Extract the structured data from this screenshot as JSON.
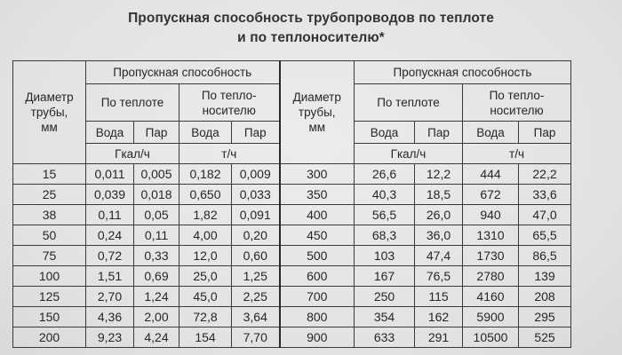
{
  "title_line1": "Пропускная способность трубопроводов по теплоте",
  "title_line2": "и по теплоносителю*",
  "headers": {
    "diameter_l1": "Диаметр",
    "diameter_l2": "трубы,",
    "diameter_l3": "мм",
    "capacity": "Пропускная способность",
    "by_heat": "По теплоте",
    "by_carrier_l1": "По тепло-",
    "by_carrier_l2": "носителю",
    "water": "Вода",
    "steam": "Пар",
    "unit_heat": "Гкал/ч",
    "unit_flow": "т/ч"
  },
  "left_rows": [
    {
      "d": "15",
      "hw": "0,011",
      "hs": "0,005",
      "cw": "0,182",
      "cs": "0,009"
    },
    {
      "d": "25",
      "hw": "0,039",
      "hs": "0,018",
      "cw": "0,650",
      "cs": "0,033"
    },
    {
      "d": "38",
      "hw": "0,11",
      "hs": "0,05",
      "cw": "1,82",
      "cs": "0,091"
    },
    {
      "d": "50",
      "hw": "0,24",
      "hs": "0,11",
      "cw": "4,00",
      "cs": "0,20"
    },
    {
      "d": "75",
      "hw": "0,72",
      "hs": "0,33",
      "cw": "12,0",
      "cs": "0,60"
    },
    {
      "d": "100",
      "hw": "1,51",
      "hs": "0,69",
      "cw": "25,0",
      "cs": "1,25"
    },
    {
      "d": "125",
      "hw": "2,70",
      "hs": "1,24",
      "cw": "45,0",
      "cs": "2,25"
    },
    {
      "d": "150",
      "hw": "4,36",
      "hs": "2,00",
      "cw": "72,8",
      "cs": "3,64"
    },
    {
      "d": "200",
      "hw": "9,23",
      "hs": "4,24",
      "cw": "154",
      "cs": "7,70"
    }
  ],
  "right_rows": [
    {
      "d": "300",
      "hw": "26,6",
      "hs": "12,2",
      "cw": "444",
      "cs": "22,2"
    },
    {
      "d": "350",
      "hw": "40,3",
      "hs": "18,5",
      "cw": "672",
      "cs": "33,6"
    },
    {
      "d": "400",
      "hw": "56,5",
      "hs": "26,0",
      "cw": "940",
      "cs": "47,0"
    },
    {
      "d": "450",
      "hw": "68,3",
      "hs": "36,0",
      "cw": "1310",
      "cs": "65,5"
    },
    {
      "d": "500",
      "hw": "103",
      "hs": "47,4",
      "cw": "1730",
      "cs": "86,5"
    },
    {
      "d": "600",
      "hw": "167",
      "hs": "76,5",
      "cw": "2780",
      "cs": "139"
    },
    {
      "d": "700",
      "hw": "250",
      "hs": "115",
      "cw": "4160",
      "cs": "208"
    },
    {
      "d": "800",
      "hw": "354",
      "hs": "162",
      "cw": "5900",
      "cs": "295"
    },
    {
      "d": "900",
      "hw": "633",
      "hs": "291",
      "cw": "10500",
      "cs": "525"
    }
  ]
}
